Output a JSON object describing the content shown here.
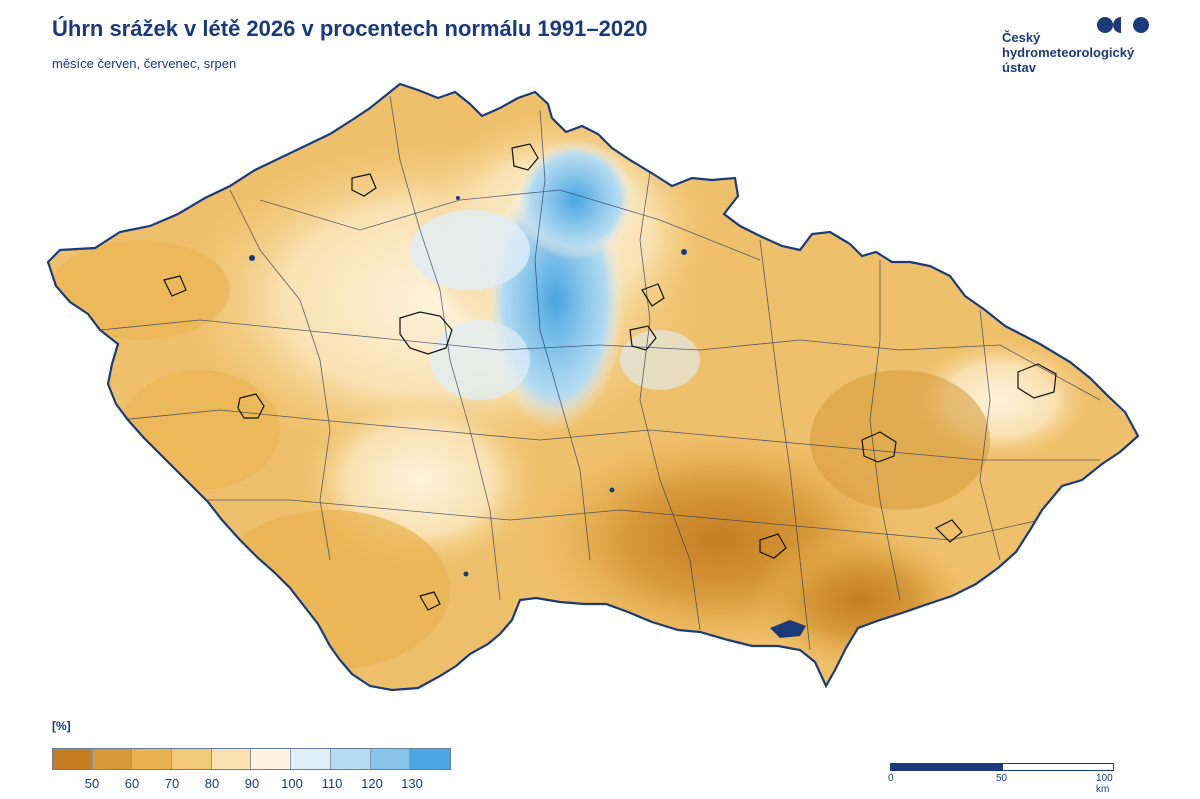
{
  "header": {
    "title": "Úhrn srážek v létě 2026 v procentech normálu 1991–2020",
    "subtitle": "měsíce červen, červenec, srpen"
  },
  "logo": {
    "lines": [
      "Český",
      "hydrometeorologický",
      "ústav"
    ],
    "color": "#1a3a7a"
  },
  "legend": {
    "unit": "[%]",
    "swatches": [
      "#c47d22",
      "#d69a3a",
      "#e9b24f",
      "#f2c979",
      "#f9e2b2",
      "#fdf2dc",
      "#e0eef8",
      "#b6dcf1",
      "#86c4ea",
      "#4aa6e0"
    ],
    "ticks": [
      "50",
      "60",
      "70",
      "80",
      "90",
      "100",
      "110",
      "120",
      "130"
    ]
  },
  "scale": {
    "labels": [
      "0",
      "50",
      "100 km"
    ]
  },
  "map": {
    "border_color": "#1a3a7a",
    "wet_center_color": "#4aa6e0",
    "dry_color": "#d69a3a"
  }
}
